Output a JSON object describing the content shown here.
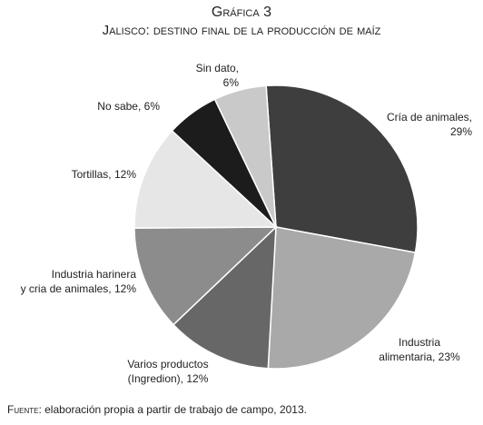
{
  "chart_data": {
    "type": "pie",
    "title": "Gráfica 3",
    "subtitle": "Jalisco: destino final de la producción de maíz",
    "values": [
      29,
      23,
      12,
      12,
      12,
      6,
      6
    ],
    "value_labels": [
      [
        "Cría de animales,",
        "29%"
      ],
      [
        "Industria",
        "alimentaria, 23%"
      ],
      [
        "Varios productos",
        "(Ingredion), 12%"
      ],
      [
        "Industria harinera",
        "y cria de animales, 12%"
      ],
      [
        "Tortillas, 12%"
      ],
      [
        "No sabe, 6%"
      ],
      [
        "Sin dato,",
        "6%"
      ]
    ],
    "colors": [
      "#3e3e3e",
      "#a9a9a9",
      "#676767",
      "#8c8c8c",
      "#e6e6e6",
      "#1c1c1c",
      "#c9c9c9"
    ],
    "source_label": "Fuente:",
    "source": "elaboración propia a partir de trabajo de campo, 2013."
  }
}
